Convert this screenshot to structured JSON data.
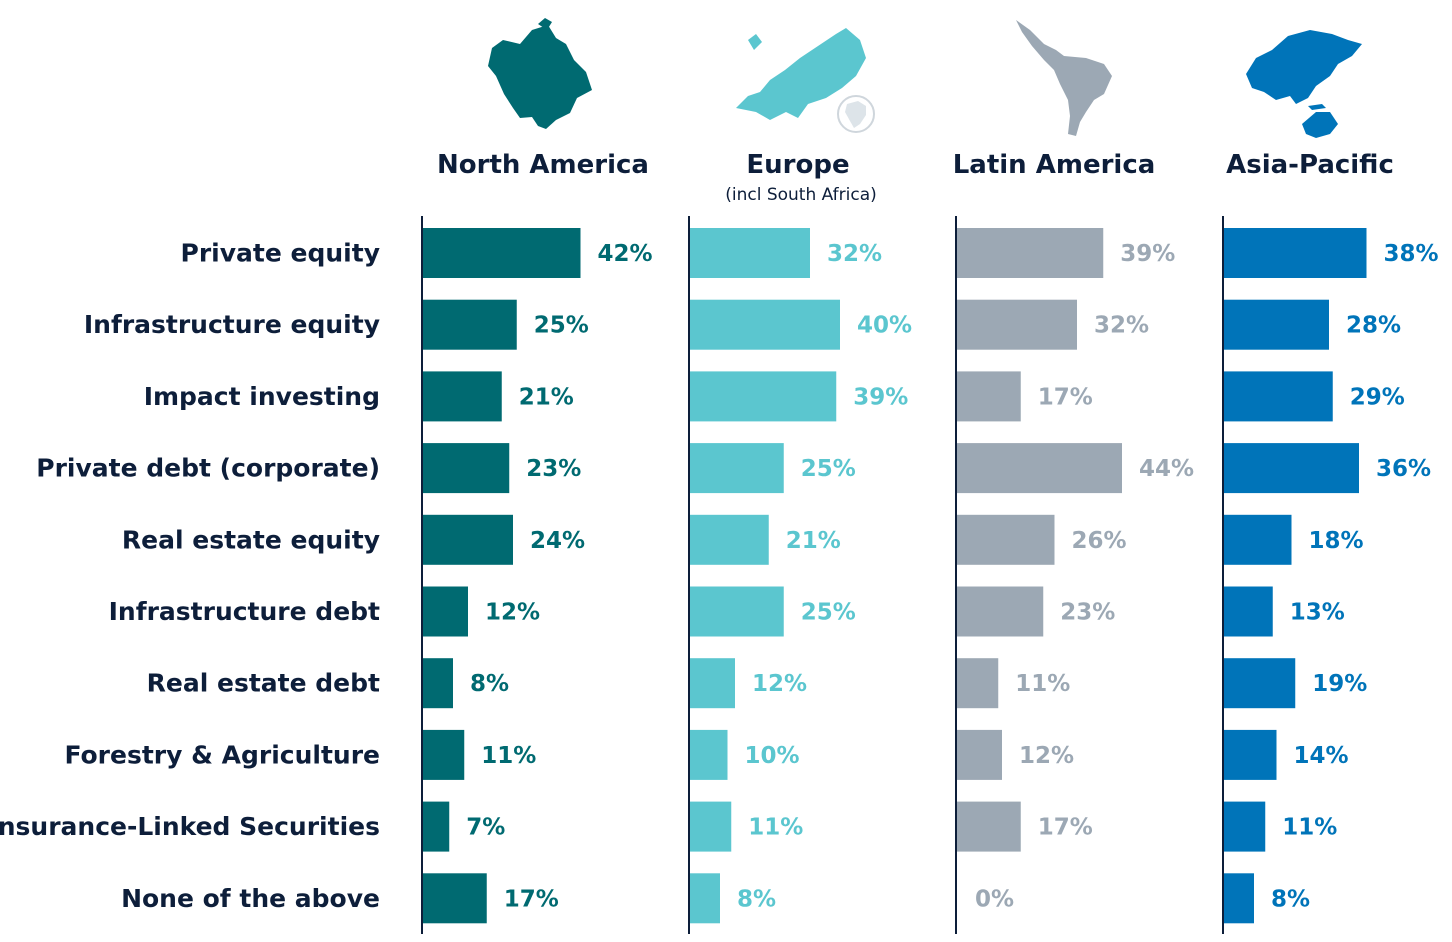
{
  "chart_data": {
    "type": "bar",
    "orientation": "horizontal",
    "categories": [
      "Private equity",
      "Infrastructure equity",
      "Impact investing",
      "Private debt (corporate)",
      "Real estate equity",
      "Infrastructure debt",
      "Real estate debt",
      "Forestry & Agriculture",
      "Insurance-Linked Securities",
      "None of the above"
    ],
    "series": [
      {
        "name": "North America",
        "subtitle": "",
        "color": "#006a71",
        "icon": "north-america-map-icon",
        "values": [
          42,
          25,
          21,
          23,
          24,
          12,
          8,
          11,
          7,
          17
        ],
        "labels": [
          "42%",
          "25%",
          "21%",
          "23%",
          "24%",
          "12%",
          "8%",
          "11%",
          "7%",
          "17%"
        ]
      },
      {
        "name": "Europe",
        "subtitle": "(incl South Africa)",
        "color": "#5bc6cf",
        "icon": "europe-map-icon",
        "values": [
          32,
          40,
          39,
          25,
          21,
          25,
          12,
          10,
          11,
          8
        ],
        "labels": [
          "32%",
          "40%",
          "39%",
          "25%",
          "21%",
          "25%",
          "12%",
          "10%",
          "11%",
          "8%"
        ]
      },
      {
        "name": "Latin America",
        "subtitle": "",
        "color": "#9ca8b4",
        "icon": "latin-america-map-icon",
        "values": [
          39,
          32,
          17,
          44,
          26,
          23,
          11,
          12,
          17,
          0
        ],
        "labels": [
          "39%",
          "32%",
          "17%",
          "44%",
          "26%",
          "23%",
          "11%",
          "12%",
          "17%",
          "0%"
        ]
      },
      {
        "name": "Asia-Pacific",
        "subtitle": "",
        "color": "#0074b9",
        "icon": "asia-pacific-map-icon",
        "values": [
          38,
          28,
          29,
          36,
          18,
          13,
          19,
          14,
          11,
          8
        ],
        "labels": [
          "38%",
          "28%",
          "29%",
          "36%",
          "18%",
          "13%",
          "19%",
          "14%",
          "11%",
          "8%"
        ]
      }
    ],
    "unit": "%",
    "xlim": [
      0,
      44
    ],
    "grid": false,
    "legend": "none"
  }
}
